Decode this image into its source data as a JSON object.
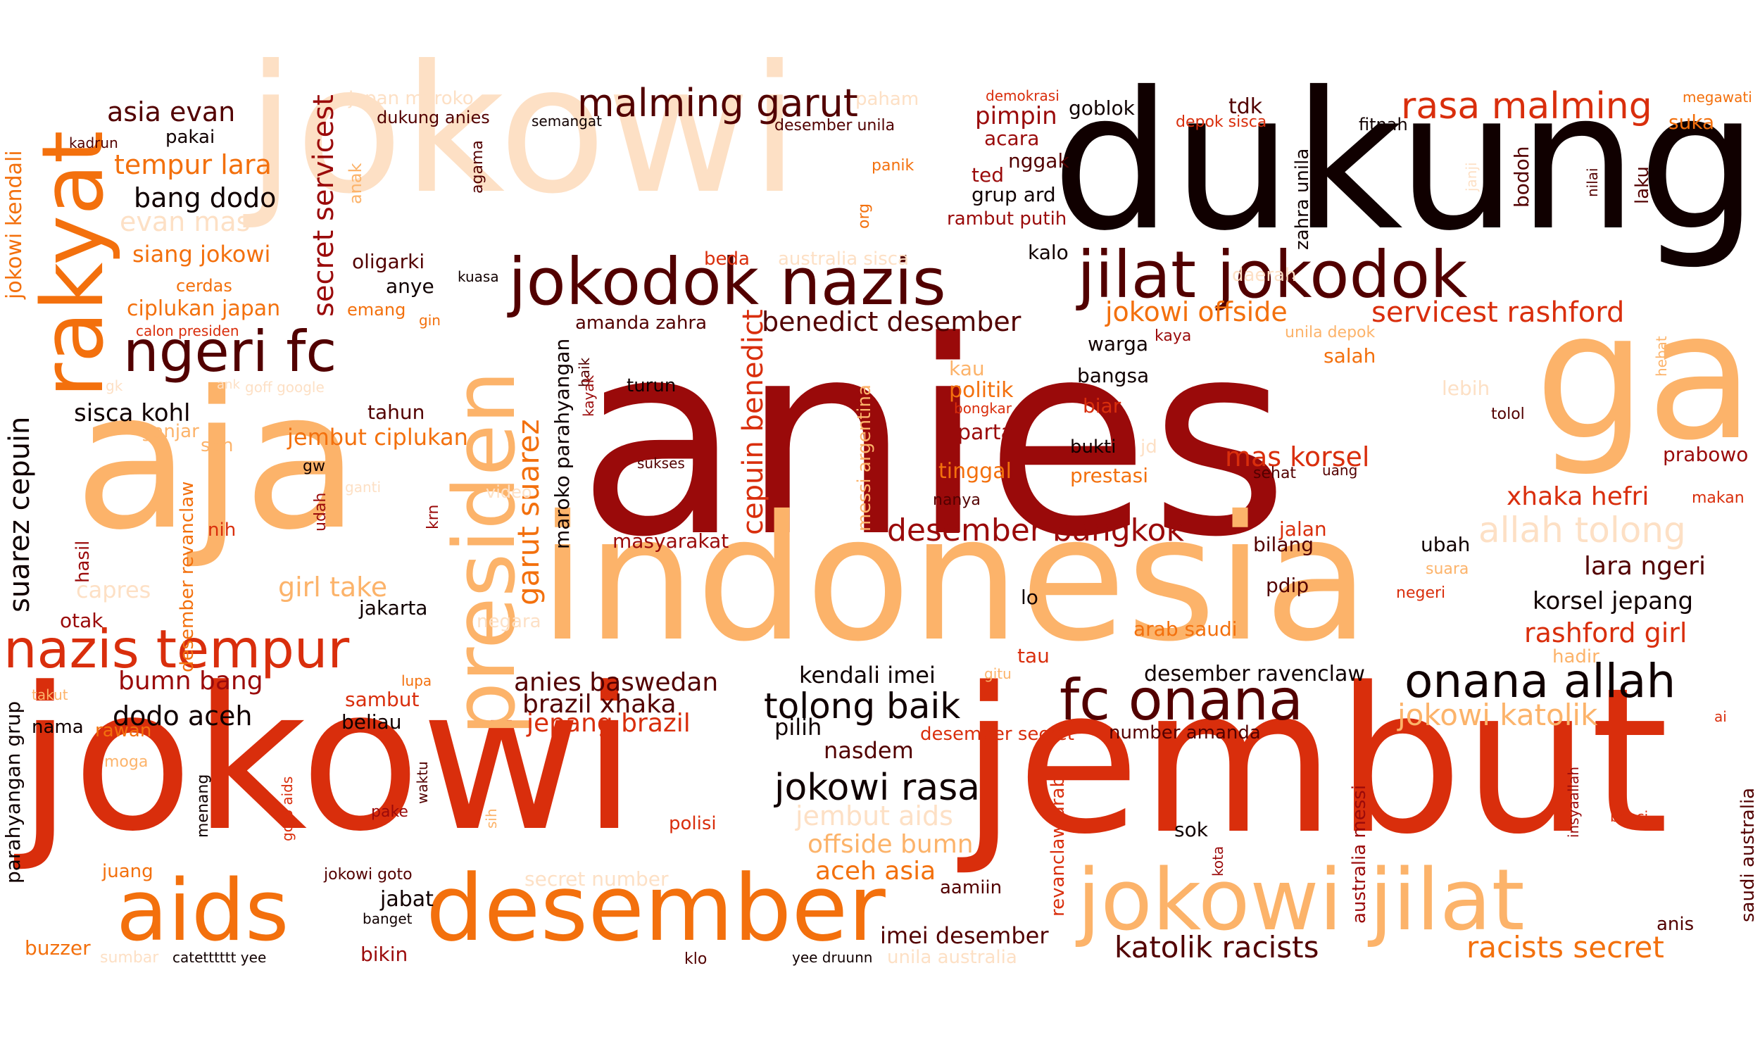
{
  "palette": {
    "c1": "#100000",
    "c2": "#520000",
    "c3": "#9a0a0a",
    "c4": "#d92e0c",
    "c5": "#f3700d",
    "c6": "#fcb36a",
    "c7": "#fde0c5"
  },
  "words": [
    {
      "t": "anies",
      "c": "c3"
    },
    {
      "t": "jokowi",
      "c": "c7"
    },
    {
      "t": "dukung",
      "c": "c1"
    },
    {
      "t": "aja",
      "c": "c6"
    },
    {
      "t": "indonesia",
      "c": "c6"
    },
    {
      "t": "jokowi",
      "c": "c4"
    },
    {
      "t": "jembut",
      "c": "c4"
    },
    {
      "t": "ga",
      "c": "c6"
    },
    {
      "t": "rakyat",
      "c": "c5"
    },
    {
      "t": "presiden",
      "c": "c6"
    },
    {
      "t": "jokodok nazis",
      "c": "c2"
    },
    {
      "t": "jilat jokodok",
      "c": "c2"
    },
    {
      "t": "ngeri fc",
      "c": "c2"
    },
    {
      "t": "nazis tempur",
      "c": "c4"
    },
    {
      "t": "aids",
      "c": "c5"
    },
    {
      "t": "desember",
      "c": "c5"
    },
    {
      "t": "jokowi jilat",
      "c": "c6"
    },
    {
      "t": "fc onana",
      "c": "c2"
    },
    {
      "t": "onana allah",
      "c": "c1"
    },
    {
      "t": "malming garut",
      "c": "c2"
    },
    {
      "t": "rasa malming",
      "c": "c4"
    },
    {
      "t": "asia evan",
      "c": "c2"
    },
    {
      "t": "tempur lara",
      "c": "c5"
    },
    {
      "t": "bang dodo",
      "c": "c1"
    },
    {
      "t": "evan mas",
      "c": "c7"
    },
    {
      "t": "siang jokowi",
      "c": "c5"
    },
    {
      "t": "secret servicest",
      "c": "c3"
    },
    {
      "t": "garut suarez",
      "c": "c5"
    },
    {
      "t": "suarez cepuin",
      "c": "c1"
    },
    {
      "t": "jokowi kendali",
      "c": "c5"
    },
    {
      "t": "cepuin benedict",
      "c": "c4"
    },
    {
      "t": "benedict desember",
      "c": "c2"
    },
    {
      "t": "jokowi offside",
      "c": "c5"
    },
    {
      "t": "servicest rashford",
      "c": "c4"
    },
    {
      "t": "sisca kohl",
      "c": "c1"
    },
    {
      "t": "jembut ciplukan",
      "c": "c5"
    },
    {
      "t": "ciplukan japan",
      "c": "c5"
    },
    {
      "t": "girl take",
      "c": "c6"
    },
    {
      "t": "desember bangkok",
      "c": "c3"
    },
    {
      "t": "mas korsel",
      "c": "c4"
    },
    {
      "t": "xhaka hefri",
      "c": "c4"
    },
    {
      "t": "allah tolong",
      "c": "c7"
    },
    {
      "t": "lara ngeri",
      "c": "c2"
    },
    {
      "t": "korsel jepang",
      "c": "c1"
    },
    {
      "t": "rashford girl",
      "c": "c4"
    },
    {
      "t": "bumn bang",
      "c": "c3"
    },
    {
      "t": "dodo aceh",
      "c": "c1"
    },
    {
      "t": "anies baswedan",
      "c": "c2"
    },
    {
      "t": "brazil xhaka",
      "c": "c2"
    },
    {
      "t": "jepang brazil",
      "c": "c4"
    },
    {
      "t": "tolong baik",
      "c": "c1"
    },
    {
      "t": "kendali imei",
      "c": "c1"
    },
    {
      "t": "desember ravenclaw",
      "c": "c1"
    },
    {
      "t": "jokowi katolik",
      "c": "c6"
    },
    {
      "t": "jokowi rasa",
      "c": "c1"
    },
    {
      "t": "jembut aids",
      "c": "c7"
    },
    {
      "t": "offside bumn",
      "c": "c6"
    },
    {
      "t": "aceh asia",
      "c": "c5"
    },
    {
      "t": "katolik racists",
      "c": "c2"
    },
    {
      "t": "racists secret",
      "c": "c5"
    },
    {
      "t": "imei desember",
      "c": "c2"
    },
    {
      "t": "desember secret",
      "c": "c4"
    },
    {
      "t": "number amanda",
      "c": "c2"
    },
    {
      "t": "arab saudi",
      "c": "c5"
    },
    {
      "t": "maroko parahyangan",
      "c": "c1"
    },
    {
      "t": "amanda zahra",
      "c": "c2"
    },
    {
      "t": "zahra unila",
      "c": "c1"
    },
    {
      "t": "messi argentina",
      "c": "c6"
    },
    {
      "t": "desember revanclaw",
      "c": "c5"
    },
    {
      "t": "revanclaw arab",
      "c": "c4"
    },
    {
      "t": "australia messi",
      "c": "c3"
    },
    {
      "t": "saudi australia",
      "c": "c2"
    },
    {
      "t": "parahyangan grup",
      "c": "c1"
    },
    {
      "t": "masyarakat",
      "c": "c3"
    },
    {
      "t": "nasdem",
      "c": "c2"
    },
    {
      "t": "pilih",
      "c": "c1"
    },
    {
      "t": "secret number",
      "c": "c7"
    },
    {
      "t": "unila australia",
      "c": "c7"
    },
    {
      "t": "jakarta",
      "c": "c1"
    },
    {
      "t": "tahun",
      "c": "c2"
    },
    {
      "t": "oligarki",
      "c": "c2"
    },
    {
      "t": "anye",
      "c": "c1"
    },
    {
      "t": "emang",
      "c": "c5"
    },
    {
      "t": "dukung anies",
      "c": "c2"
    },
    {
      "t": "japan maroko",
      "c": "c7"
    },
    {
      "t": "pakai",
      "c": "c1"
    },
    {
      "t": "kadrun",
      "c": "c2"
    },
    {
      "t": "agama",
      "c": "c2"
    },
    {
      "t": "anak",
      "c": "c6"
    },
    {
      "t": "cerdas",
      "c": "c5"
    },
    {
      "t": "calon presiden",
      "c": "c4"
    },
    {
      "t": "kuasa",
      "c": "c1"
    },
    {
      "t": "gin",
      "c": "c5"
    },
    {
      "t": "semangat",
      "c": "c1"
    },
    {
      "t": "desember unila",
      "c": "c2"
    },
    {
      "t": "paham",
      "c": "c7"
    },
    {
      "t": "panik",
      "c": "c5"
    },
    {
      "t": "org",
      "c": "c5"
    },
    {
      "t": "beda",
      "c": "c4"
    },
    {
      "t": "australia sisca",
      "c": "c7"
    },
    {
      "t": "demokrasi",
      "c": "c4"
    },
    {
      "t": "pimpin",
      "c": "c3"
    },
    {
      "t": "acara",
      "c": "c3"
    },
    {
      "t": "goblok",
      "c": "c1"
    },
    {
      "t": "ted",
      "c": "c3"
    },
    {
      "t": "nggak",
      "c": "c2"
    },
    {
      "t": "grup ard",
      "c": "c1"
    },
    {
      "t": "rambut putih",
      "c": "c3"
    },
    {
      "t": "tdk",
      "c": "c2"
    },
    {
      "t": "depok sisca",
      "c": "c4"
    },
    {
      "t": "fitnah",
      "c": "c1"
    },
    {
      "t": "megawati",
      "c": "c5"
    },
    {
      "t": "suka",
      "c": "c5"
    },
    {
      "t": "bodoh",
      "c": "c2"
    },
    {
      "t": "janji",
      "c": "c7"
    },
    {
      "t": "nilai",
      "c": "c2"
    },
    {
      "t": "laku",
      "c": "c2"
    },
    {
      "t": "kalo",
      "c": "c1"
    },
    {
      "t": "daerah",
      "c": "c7"
    },
    {
      "t": "warga",
      "c": "c1"
    },
    {
      "t": "kaya",
      "c": "c3"
    },
    {
      "t": "unila depok",
      "c": "c6"
    },
    {
      "t": "salah",
      "c": "c5"
    },
    {
      "t": "kau",
      "c": "c6"
    },
    {
      "t": "politik",
      "c": "c5"
    },
    {
      "t": "bongkar",
      "c": "c4"
    },
    {
      "t": "bangsa",
      "c": "c1"
    },
    {
      "t": "biar",
      "c": "c4"
    },
    {
      "t": "partai",
      "c": "c3"
    },
    {
      "t": "bukti",
      "c": "c1"
    },
    {
      "t": "jd",
      "c": "c7"
    },
    {
      "t": "tinggal",
      "c": "c5"
    },
    {
      "t": "prestasi",
      "c": "c5"
    },
    {
      "t": "sehat",
      "c": "c2"
    },
    {
      "t": "uang",
      "c": "c2"
    },
    {
      "t": "nanya",
      "c": "c2"
    },
    {
      "t": "jalan",
      "c": "c4"
    },
    {
      "t": "bilang",
      "c": "c2"
    },
    {
      "t": "ubah",
      "c": "c1"
    },
    {
      "t": "pdip",
      "c": "c2"
    },
    {
      "t": "suara",
      "c": "c6"
    },
    {
      "t": "negeri",
      "c": "c4"
    },
    {
      "t": "lo",
      "c": "c1"
    },
    {
      "t": "tau",
      "c": "c4"
    },
    {
      "t": "gitu",
      "c": "c6"
    },
    {
      "t": "lebih",
      "c": "c7"
    },
    {
      "t": "tolol",
      "c": "c2"
    },
    {
      "t": "hebat",
      "c": "c6"
    },
    {
      "t": "prabowo",
      "c": "c3"
    },
    {
      "t": "makan",
      "c": "c4"
    },
    {
      "t": "hadir",
      "c": "c6"
    },
    {
      "t": "turun",
      "c": "c1"
    },
    {
      "t": "baik",
      "c": "c2"
    },
    {
      "t": "kayak",
      "c": "c3"
    },
    {
      "t": "sukses",
      "c": "c2"
    },
    {
      "t": "ganjar",
      "c": "c6"
    },
    {
      "t": "sdh",
      "c": "c6"
    },
    {
      "t": "gw",
      "c": "c1"
    },
    {
      "t": "ganti",
      "c": "c7"
    },
    {
      "t": "video",
      "c": "c7"
    },
    {
      "t": "krn",
      "c": "c3"
    },
    {
      "t": "udah",
      "c": "c3"
    },
    {
      "t": "nih",
      "c": "c4"
    },
    {
      "t": "hasil",
      "c": "c3"
    },
    {
      "t": "capres",
      "c": "c7"
    },
    {
      "t": "otak",
      "c": "c3"
    },
    {
      "t": "negara",
      "c": "c7"
    },
    {
      "t": "gk",
      "c": "c7"
    },
    {
      "t": "ank",
      "c": "c7"
    },
    {
      "t": "goff google",
      "c": "c7"
    },
    {
      "t": "takut",
      "c": "c6"
    },
    {
      "t": "lupa",
      "c": "c5"
    },
    {
      "t": "sambut",
      "c": "c4"
    },
    {
      "t": "beliau",
      "c": "c1"
    },
    {
      "t": "nama",
      "c": "c1"
    },
    {
      "t": "rawan",
      "c": "c5"
    },
    {
      "t": "moga",
      "c": "c6"
    },
    {
      "t": "menang",
      "c": "c1"
    },
    {
      "t": "goto aids",
      "c": "c4"
    },
    {
      "t": "waktu",
      "c": "c2"
    },
    {
      "t": "pake",
      "c": "c3"
    },
    {
      "t": "sih",
      "c": "c6"
    },
    {
      "t": "polisi",
      "c": "c4"
    },
    {
      "t": "juang",
      "c": "c5"
    },
    {
      "t": "jokowi goto",
      "c": "c2"
    },
    {
      "t": "jabat",
      "c": "c1"
    },
    {
      "t": "banget",
      "c": "c1"
    },
    {
      "t": "buzzer",
      "c": "c5"
    },
    {
      "t": "sumbar",
      "c": "c7"
    },
    {
      "t": "catetttttt yee",
      "c": "c1"
    },
    {
      "t": "bikin",
      "c": "c3"
    },
    {
      "t": "klo",
      "c": "c2"
    },
    {
      "t": "yee druunn",
      "c": "c1"
    },
    {
      "t": "aamiin",
      "c": "c2"
    },
    {
      "t": "sok",
      "c": "c1"
    },
    {
      "t": "kota",
      "c": "c3"
    },
    {
      "t": "insyaallah",
      "c": "c3"
    },
    {
      "t": "benci",
      "c": "c4"
    },
    {
      "t": "anis",
      "c": "c2"
    },
    {
      "t": "ai",
      "c": "c4"
    }
  ]
}
